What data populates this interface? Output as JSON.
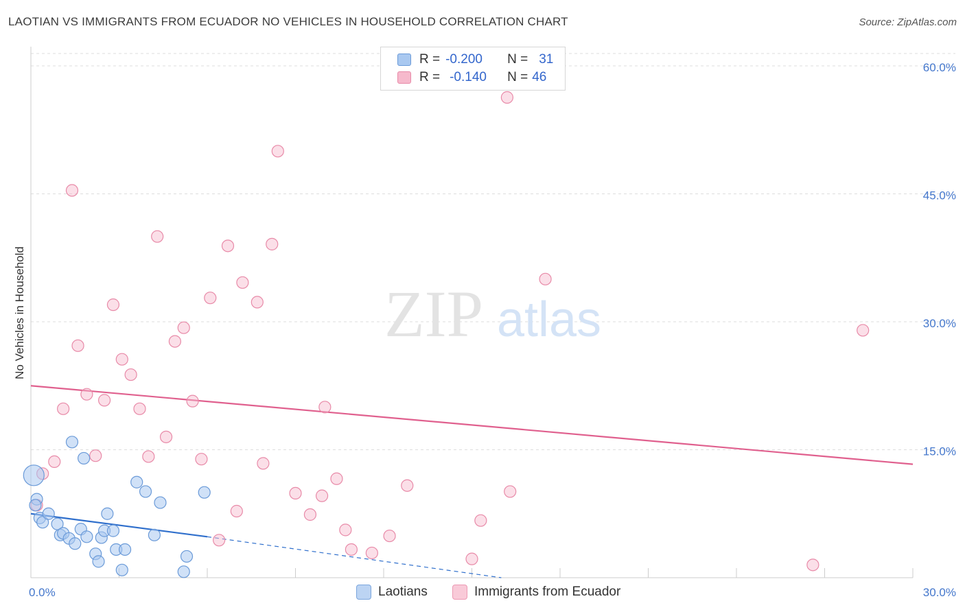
{
  "title": "LAOTIAN VS IMMIGRANTS FROM ECUADOR NO VEHICLES IN HOUSEHOLD CORRELATION CHART",
  "source": "Source: ZipAtlas.com",
  "watermark": {
    "zip": "ZIP",
    "atlas": "atlas"
  },
  "legend": {
    "rows": [
      {
        "r_label": "R =",
        "r_value": "-0.200",
        "n_label": "N =",
        "n_value": "31"
      },
      {
        "r_label": "R =",
        "r_value": "-0.140",
        "n_label": "N =",
        "n_value": "46"
      }
    ]
  },
  "bottom_legend": [
    "Laotians",
    "Immigrants from Ecuador"
  ],
  "colors": {
    "laotian_fill": "#a9c8f0",
    "laotian_stroke": "#6a9ad8",
    "laotian_line": "#2f6fcc",
    "ecuador_fill": "#f6b9cc",
    "ecuador_stroke": "#e88aa8",
    "ecuador_line": "#e0608e",
    "tick_text": "#4477cc",
    "grid": "#dddddd"
  },
  "chart_data": {
    "type": "scatter",
    "title": "LAOTIAN VS IMMIGRANTS FROM ECUADOR NO VEHICLES IN HOUSEHOLD CORRELATION CHART",
    "xlabel": "",
    "ylabel": "No Vehicles in Household",
    "xlim": [
      0,
      30
    ],
    "ylim": [
      0,
      60
    ],
    "x_tick_labels": [
      "0.0%",
      "30.0%"
    ],
    "y_tick_labels": [
      "15.0%",
      "30.0%",
      "45.0%",
      "60.0%"
    ],
    "y_ticks": [
      15,
      30,
      45,
      60
    ],
    "grid": true,
    "series": [
      {
        "name": "Laotians",
        "points": [
          [
            0.1,
            12.0
          ],
          [
            0.2,
            9.2
          ],
          [
            0.3,
            7.0
          ],
          [
            0.4,
            6.5
          ],
          [
            0.6,
            7.5
          ],
          [
            0.9,
            6.3
          ],
          [
            1.0,
            5.0
          ],
          [
            1.1,
            5.2
          ],
          [
            1.3,
            4.6
          ],
          [
            1.5,
            4.0
          ],
          [
            1.4,
            15.9
          ],
          [
            1.7,
            5.7
          ],
          [
            1.8,
            14.0
          ],
          [
            1.9,
            4.8
          ],
          [
            2.2,
            2.8
          ],
          [
            2.3,
            1.9
          ],
          [
            2.4,
            4.7
          ],
          [
            2.5,
            5.5
          ],
          [
            2.6,
            7.5
          ],
          [
            2.8,
            5.5
          ],
          [
            2.9,
            3.3
          ],
          [
            3.1,
            0.9
          ],
          [
            3.2,
            3.3
          ],
          [
            3.6,
            11.2
          ],
          [
            3.9,
            10.1
          ],
          [
            4.2,
            5.0
          ],
          [
            4.4,
            8.8
          ],
          [
            5.2,
            0.7
          ],
          [
            5.3,
            2.5
          ],
          [
            5.9,
            10.0
          ],
          [
            0.15,
            8.5
          ]
        ],
        "trend": {
          "x0": 0.0,
          "y0": 7.5,
          "x1": 6.0,
          "y1": 4.8,
          "dash_x1": 16.0,
          "dash_y1": 0.0
        }
      },
      {
        "name": "Immigrants from Ecuador",
        "points": [
          [
            0.2,
            8.5
          ],
          [
            0.4,
            12.2
          ],
          [
            0.8,
            13.6
          ],
          [
            1.1,
            19.8
          ],
          [
            1.4,
            45.4
          ],
          [
            1.6,
            27.2
          ],
          [
            1.9,
            21.5
          ],
          [
            2.2,
            14.3
          ],
          [
            2.5,
            20.8
          ],
          [
            2.8,
            32.0
          ],
          [
            3.1,
            25.6
          ],
          [
            3.4,
            23.8
          ],
          [
            3.7,
            19.8
          ],
          [
            4.0,
            14.2
          ],
          [
            4.3,
            40.0
          ],
          [
            4.6,
            16.5
          ],
          [
            4.9,
            27.7
          ],
          [
            5.2,
            29.3
          ],
          [
            5.5,
            20.7
          ],
          [
            5.8,
            13.9
          ],
          [
            6.1,
            32.8
          ],
          [
            6.4,
            4.4
          ],
          [
            6.7,
            38.9
          ],
          [
            7.0,
            7.8
          ],
          [
            7.2,
            34.6
          ],
          [
            7.7,
            32.3
          ],
          [
            7.9,
            13.4
          ],
          [
            8.2,
            39.1
          ],
          [
            8.4,
            50.0
          ],
          [
            9.0,
            9.9
          ],
          [
            9.5,
            7.4
          ],
          [
            9.9,
            9.6
          ],
          [
            10.0,
            20.0
          ],
          [
            10.4,
            11.6
          ],
          [
            10.7,
            5.6
          ],
          [
            10.9,
            3.3
          ],
          [
            11.6,
            2.9
          ],
          [
            12.2,
            4.9
          ],
          [
            12.8,
            10.8
          ],
          [
            15.0,
            2.2
          ],
          [
            15.3,
            6.7
          ],
          [
            16.3,
            10.1
          ],
          [
            16.2,
            56.3
          ],
          [
            17.5,
            35.0
          ],
          [
            26.6,
            1.5
          ],
          [
            28.3,
            29.0
          ]
        ],
        "trend": {
          "x0": 0.0,
          "y0": 22.5,
          "x1": 30.0,
          "y1": 13.3
        }
      }
    ]
  }
}
